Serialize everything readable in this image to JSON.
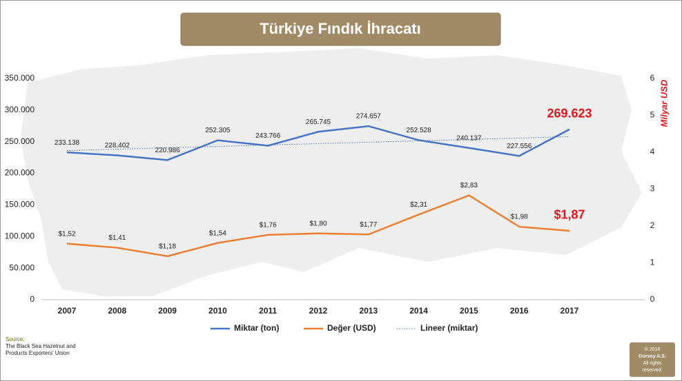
{
  "chart_data": {
    "type": "line",
    "title": "Türkiye Fındık İhracatı",
    "categories": [
      "2007",
      "2008",
      "2009",
      "2010",
      "2011",
      "2012",
      "2013",
      "2014",
      "2015",
      "2016",
      "2017"
    ],
    "ylim": [
      0,
      350000
    ],
    "yticks": [
      0,
      {
        "value": 50000,
        "label": "50.000"
      },
      {
        "value": 100000,
        "label": "100.000"
      },
      {
        "value": 150000,
        "label": "150.000"
      },
      {
        "value": 200000,
        "label": "200.000"
      },
      {
        "value": 250000,
        "label": "250.000"
      },
      {
        "value": 300000,
        "label": "300.000"
      },
      {
        "value": 350000,
        "label": "350.000"
      }
    ],
    "y2lim": [
      0,
      6
    ],
    "y2ticks": [
      0,
      1,
      2,
      3,
      4,
      5,
      6
    ],
    "y2label": "Milyar USD",
    "highlight_color": "#e0161b",
    "series": [
      {
        "name": "Miktar (ton)",
        "color": "#4472c4",
        "style": "solid",
        "values": [
          233138,
          228402,
          220986,
          252305,
          243766,
          265745,
          274657,
          252528,
          240137,
          227556,
          269623
        ],
        "value_labels": [
          "233.138",
          "228.402",
          "220.986",
          "252.305",
          "243.766",
          "265.745",
          "274.657",
          "252.528",
          "240.137",
          "227.556",
          "269.623"
        ]
      },
      {
        "name": "Değer (USD)",
        "color": "#ed7d31",
        "style": "solid",
        "axis": "y2",
        "values": [
          1.52,
          1.41,
          1.18,
          1.54,
          1.76,
          1.8,
          1.77,
          2.31,
          2.83,
          1.98,
          1.87
        ],
        "value_labels": [
          "$1,52",
          "$1,41",
          "$1,18",
          "$1,54",
          "$1,76",
          "$1,80",
          "$1,77",
          "$2,31",
          "$2,83",
          "$1,98",
          "$1,87"
        ]
      },
      {
        "name": "Lineer (miktar)",
        "color": "#4472c4",
        "style": "dotted",
        "values": [
          236000,
          238200,
          240400,
          242600,
          244800,
          247000,
          249200,
          251400,
          253600,
          255800,
          258000
        ]
      }
    ]
  },
  "source": {
    "label": "Source:",
    "text": [
      "The Black Sea Hazelnut and",
      "Products Exporters' Union"
    ]
  },
  "copyright": [
    "© 2018",
    "Gursoy A.S.",
    "All rights",
    "reserved."
  ]
}
